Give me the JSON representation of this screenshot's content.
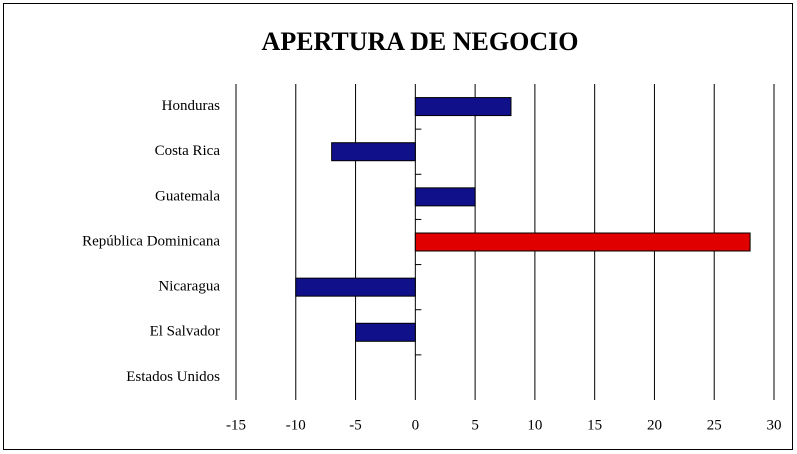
{
  "chart_data": {
    "type": "barh",
    "title": "APERTURA DE NEGOCIO",
    "categories": [
      "Honduras",
      "Costa Rica",
      "Guatemala",
      "República Dominicana",
      "Nicaragua",
      "El Salvador",
      "Estados Unidos"
    ],
    "values": [
      8,
      -7,
      5,
      28,
      -10,
      -5,
      0
    ],
    "colors": [
      "#10108a",
      "#10108a",
      "#10108a",
      "#e00000",
      "#10108a",
      "#10108a",
      "#10108a"
    ],
    "xlim": [
      -15,
      30
    ],
    "xticks": [
      -15,
      -10,
      -5,
      0,
      5,
      10,
      15,
      20,
      25,
      30
    ],
    "grid": true
  }
}
